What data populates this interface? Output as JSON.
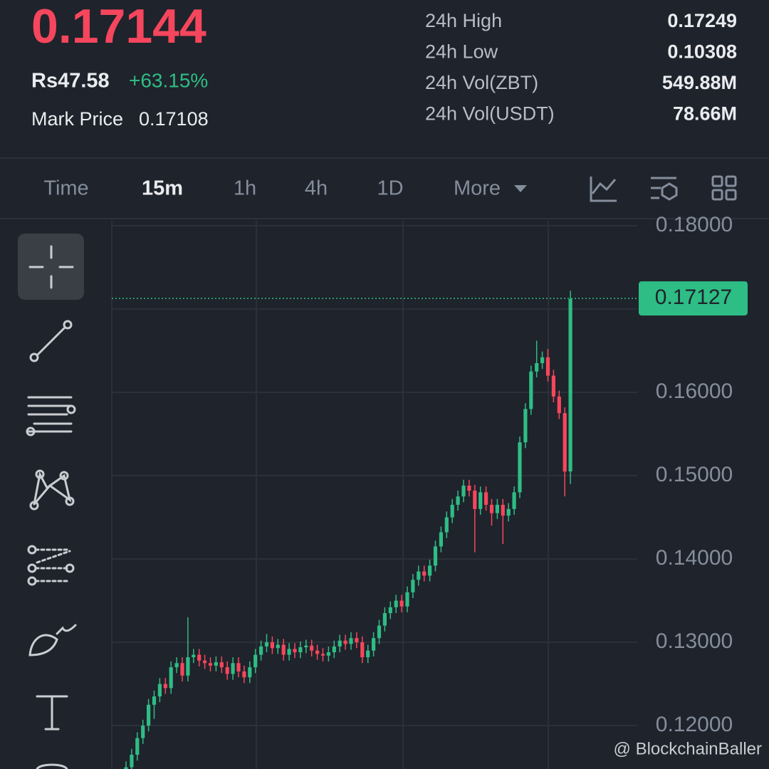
{
  "header": {
    "price": "0.17144",
    "fiat": "Rs47.58",
    "change": "+63.15%",
    "mark_price_label": "Mark Price",
    "mark_price": "0.17108",
    "stats": [
      {
        "label": "24h High",
        "value": "0.17249"
      },
      {
        "label": "24h Low",
        "value": "0.10308"
      },
      {
        "label": "24h Vol(ZBT)",
        "value": "549.88M"
      },
      {
        "label": "24h Vol(USDT)",
        "value": "78.66M"
      }
    ]
  },
  "tabs": [
    "Time",
    "15m",
    "1h",
    "4h",
    "1D",
    "More"
  ],
  "watermark": "@ BlockchainBaller",
  "chart_data": {
    "type": "candlestick",
    "up_color": "#2ebd85",
    "down_color": "#f6465d",
    "grid": true,
    "ylim": [
      0.11479,
      0.18085
    ],
    "yticks": [
      {
        "value": 0.18,
        "label": "0.18000"
      },
      {
        "value": 0.17,
        "label": "0.17000"
      },
      {
        "value": 0.16,
        "label": "0.16000"
      },
      {
        "value": 0.15,
        "label": "0.15000"
      },
      {
        "value": 0.14,
        "label": "0.14000"
      },
      {
        "value": 0.13,
        "label": "0.13000"
      },
      {
        "value": 0.12,
        "label": "0.12000"
      }
    ],
    "last_price": 0.17127,
    "open": [
      0.114,
      0.115,
      0.1165,
      0.1185,
      0.12,
      0.1225,
      0.1235,
      0.125,
      0.1245,
      0.127,
      0.1275,
      0.126,
      0.1282,
      0.1285,
      0.1278,
      0.1275,
      0.1272,
      0.1276,
      0.127,
      0.1262,
      0.1275,
      0.1265,
      0.1258,
      0.127,
      0.1285,
      0.1295,
      0.13,
      0.1293,
      0.1297,
      0.1285,
      0.1292,
      0.1288,
      0.1294,
      0.1296,
      0.129,
      0.1286,
      0.1284,
      0.1288,
      0.1295,
      0.1302,
      0.1298,
      0.1305,
      0.13,
      0.1282,
      0.129,
      0.1305,
      0.132,
      0.1335,
      0.1342,
      0.135,
      0.1343,
      0.136,
      0.1375,
      0.1385,
      0.138,
      0.1392,
      0.1415,
      0.1432,
      0.145,
      0.1465,
      0.1475,
      0.1488,
      0.1482,
      0.146,
      0.148,
      0.1465,
      0.1455,
      0.1465,
      0.1452,
      0.146,
      0.148,
      0.154,
      0.158,
      0.1625,
      0.1635,
      0.1642,
      0.162,
      0.1595,
      0.1575,
      0.1505
    ],
    "high": [
      0.1157,
      0.1172,
      0.1192,
      0.1207,
      0.1232,
      0.1242,
      0.1257,
      0.1257,
      0.1277,
      0.1282,
      0.1282,
      0.133,
      0.1292,
      0.1292,
      0.1285,
      0.1282,
      0.1283,
      0.1283,
      0.1277,
      0.1282,
      0.1282,
      0.1272,
      0.1277,
      0.1292,
      0.1302,
      0.131,
      0.1307,
      0.1304,
      0.1304,
      0.1299,
      0.1299,
      0.1301,
      0.1303,
      0.1303,
      0.1297,
      0.1293,
      0.1295,
      0.1302,
      0.1309,
      0.1309,
      0.1312,
      0.1312,
      0.1307,
      0.1297,
      0.1312,
      0.1327,
      0.1342,
      0.1349,
      0.1357,
      0.1357,
      0.1367,
      0.1382,
      0.1392,
      0.1392,
      0.1399,
      0.1422,
      0.1439,
      0.1457,
      0.1472,
      0.1482,
      0.1495,
      0.1495,
      0.1489,
      0.1487,
      0.1487,
      0.1472,
      0.1472,
      0.1472,
      0.1467,
      0.1487,
      0.1547,
      0.1587,
      0.1632,
      0.1662,
      0.1649,
      0.1652,
      0.1627,
      0.1602,
      0.1582,
      0.1722
    ],
    "low": [
      0.1133,
      0.1143,
      0.1158,
      0.1178,
      0.1193,
      0.1208,
      0.1228,
      0.1238,
      0.1238,
      0.1263,
      0.1253,
      0.1253,
      0.1275,
      0.1271,
      0.1268,
      0.1265,
      0.1265,
      0.1263,
      0.1255,
      0.1255,
      0.1258,
      0.1251,
      0.1251,
      0.1263,
      0.1278,
      0.1288,
      0.1286,
      0.1286,
      0.1278,
      0.1278,
      0.1281,
      0.1281,
      0.1287,
      0.1283,
      0.1279,
      0.1277,
      0.1277,
      0.1281,
      0.1288,
      0.1291,
      0.1291,
      0.1293,
      0.1275,
      0.1275,
      0.1283,
      0.1298,
      0.1313,
      0.1328,
      0.1335,
      0.1336,
      0.1336,
      0.1353,
      0.1368,
      0.1373,
      0.1373,
      0.1385,
      0.1408,
      0.1425,
      0.1443,
      0.1458,
      0.1468,
      0.1475,
      0.1408,
      0.1453,
      0.1458,
      0.144,
      0.1448,
      0.1418,
      0.1445,
      0.1453,
      0.1473,
      0.1533,
      0.1573,
      0.1618,
      0.1628,
      0.1613,
      0.1588,
      0.1568,
      0.1475,
      0.149
    ],
    "close": [
      0.115,
      0.1165,
      0.1185,
      0.12,
      0.1225,
      0.1235,
      0.125,
      0.1245,
      0.127,
      0.1275,
      0.126,
      0.1282,
      0.1285,
      0.1278,
      0.1275,
      0.1272,
      0.1276,
      0.127,
      0.1262,
      0.1275,
      0.1265,
      0.1258,
      0.127,
      0.1285,
      0.1295,
      0.13,
      0.1293,
      0.1297,
      0.1285,
      0.1292,
      0.1288,
      0.1294,
      0.1296,
      0.129,
      0.1286,
      0.1284,
      0.1288,
      0.1295,
      0.1302,
      0.1298,
      0.1305,
      0.13,
      0.1282,
      0.129,
      0.1305,
      0.132,
      0.1335,
      0.1342,
      0.135,
      0.1343,
      0.136,
      0.1375,
      0.1385,
      0.138,
      0.1392,
      0.1415,
      0.1432,
      0.145,
      0.1465,
      0.1475,
      0.1488,
      0.1482,
      0.146,
      0.148,
      0.1465,
      0.1455,
      0.1465,
      0.1452,
      0.146,
      0.148,
      0.154,
      0.158,
      0.1625,
      0.1635,
      0.1642,
      0.162,
      0.1595,
      0.1575,
      0.1505,
      0.1712
    ]
  }
}
